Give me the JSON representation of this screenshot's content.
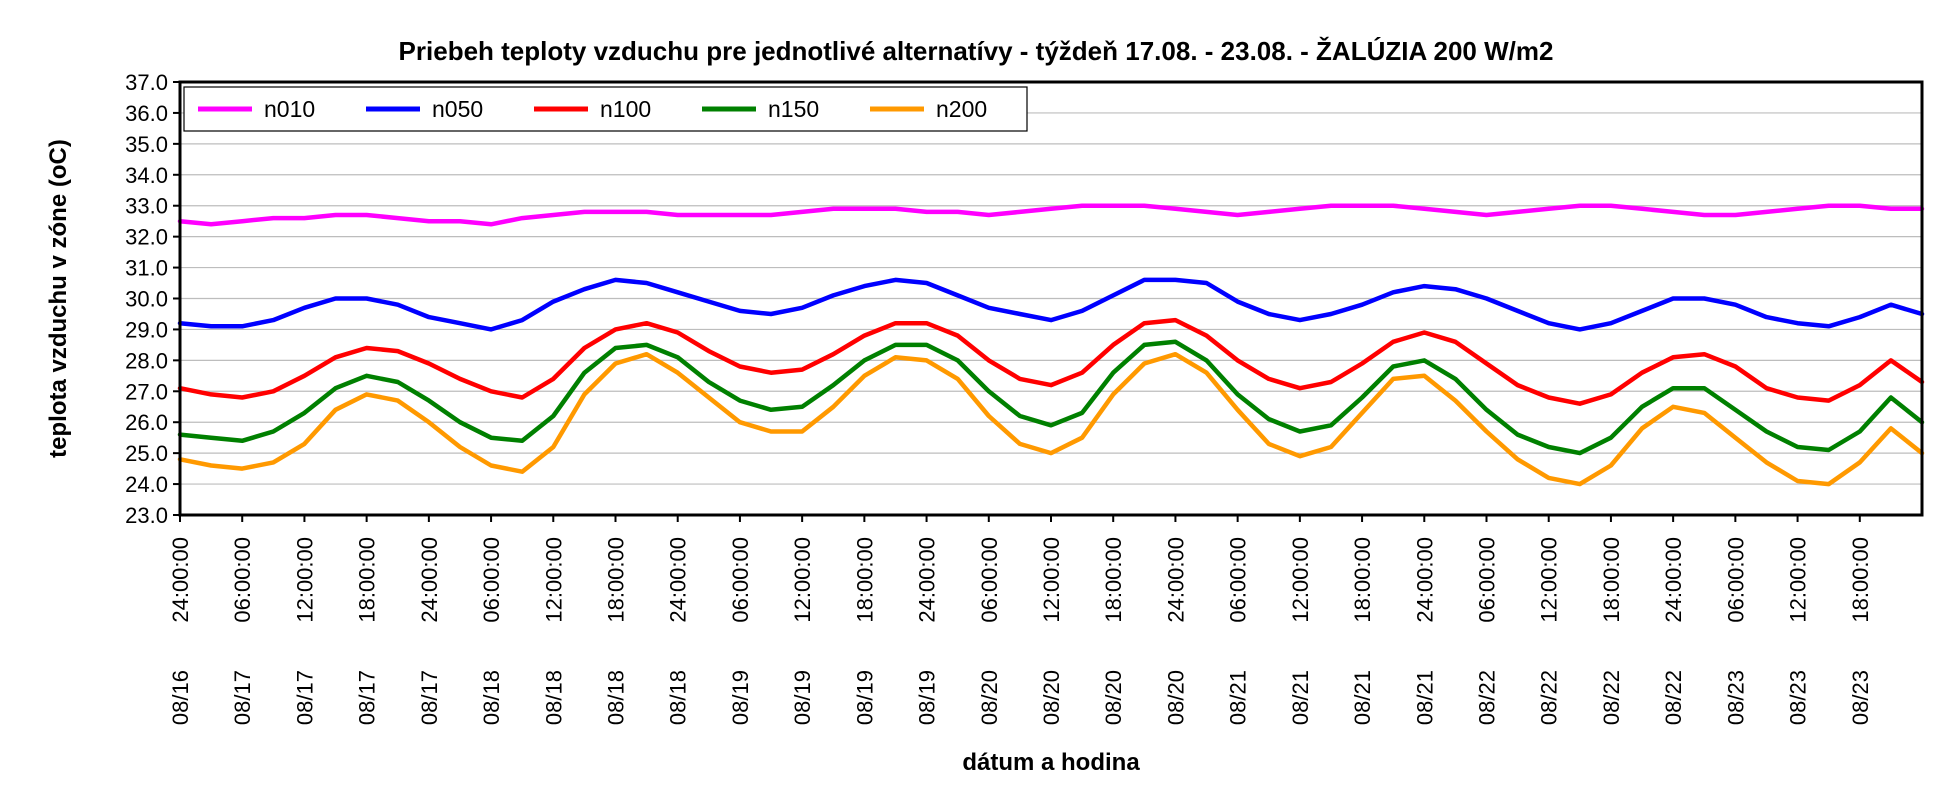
{
  "chart_data": {
    "type": "line",
    "title": "Priebeh teploty vzduchu pre jednotlivé alternatívy - týždeň 17.08. - 23.08. - ŽALÚZIA 200 W/m2",
    "xlabel": "dátum a hodina",
    "ylabel": "teplota vzduchu v zóne (oC)",
    "ylim": [
      23.0,
      37.0
    ],
    "y_ticks": [
      "23.0",
      "24.0",
      "25.0",
      "26.0",
      "27.0",
      "28.0",
      "29.0",
      "30.0",
      "31.0",
      "32.0",
      "33.0",
      "34.0",
      "35.0",
      "36.0",
      "37.0"
    ],
    "x_ticks": [
      {
        "date": "08/16",
        "time": "24:00:00"
      },
      {
        "date": "08/17",
        "time": "06:00:00"
      },
      {
        "date": "08/17",
        "time": "12:00:00"
      },
      {
        "date": "08/17",
        "time": "18:00:00"
      },
      {
        "date": "08/17",
        "time": "24:00:00"
      },
      {
        "date": "08/18",
        "time": "06:00:00"
      },
      {
        "date": "08/18",
        "time": "12:00:00"
      },
      {
        "date": "08/18",
        "time": "18:00:00"
      },
      {
        "date": "08/18",
        "time": "24:00:00"
      },
      {
        "date": "08/19",
        "time": "06:00:00"
      },
      {
        "date": "08/19",
        "time": "12:00:00"
      },
      {
        "date": "08/19",
        "time": "18:00:00"
      },
      {
        "date": "08/19",
        "time": "24:00:00"
      },
      {
        "date": "08/20",
        "time": "06:00:00"
      },
      {
        "date": "08/20",
        "time": "12:00:00"
      },
      {
        "date": "08/20",
        "time": "18:00:00"
      },
      {
        "date": "08/20",
        "time": "24:00:00"
      },
      {
        "date": "08/21",
        "time": "06:00:00"
      },
      {
        "date": "08/21",
        "time": "12:00:00"
      },
      {
        "date": "08/21",
        "time": "18:00:00"
      },
      {
        "date": "08/21",
        "time": "24:00:00"
      },
      {
        "date": "08/22",
        "time": "06:00:00"
      },
      {
        "date": "08/22",
        "time": "12:00:00"
      },
      {
        "date": "08/22",
        "time": "18:00:00"
      },
      {
        "date": "08/22",
        "time": "24:00:00"
      },
      {
        "date": "08/23",
        "time": "06:00:00"
      },
      {
        "date": "08/23",
        "time": "12:00:00"
      },
      {
        "date": "08/23",
        "time": "18:00:00"
      }
    ],
    "x_range_hours": [
      0,
      168
    ],
    "grid": "horizontal",
    "legend_position": "top-left",
    "series": [
      {
        "name": "n010",
        "color": "#ff00ff",
        "points": [
          [
            0,
            32.5
          ],
          [
            3,
            32.4
          ],
          [
            6,
            32.5
          ],
          [
            9,
            32.6
          ],
          [
            12,
            32.6
          ],
          [
            15,
            32.7
          ],
          [
            18,
            32.7
          ],
          [
            21,
            32.6
          ],
          [
            24,
            32.5
          ],
          [
            27,
            32.5
          ],
          [
            30,
            32.4
          ],
          [
            33,
            32.6
          ],
          [
            36,
            32.7
          ],
          [
            39,
            32.8
          ],
          [
            42,
            32.8
          ],
          [
            45,
            32.8
          ],
          [
            48,
            32.7
          ],
          [
            51,
            32.7
          ],
          [
            54,
            32.7
          ],
          [
            57,
            32.7
          ],
          [
            60,
            32.8
          ],
          [
            63,
            32.9
          ],
          [
            66,
            32.9
          ],
          [
            69,
            32.9
          ],
          [
            72,
            32.8
          ],
          [
            75,
            32.8
          ],
          [
            78,
            32.7
          ],
          [
            81,
            32.8
          ],
          [
            84,
            32.9
          ],
          [
            87,
            33.0
          ],
          [
            90,
            33.0
          ],
          [
            93,
            33.0
          ],
          [
            96,
            32.9
          ],
          [
            99,
            32.8
          ],
          [
            102,
            32.7
          ],
          [
            105,
            32.8
          ],
          [
            108,
            32.9
          ],
          [
            111,
            33.0
          ],
          [
            114,
            33.0
          ],
          [
            117,
            33.0
          ],
          [
            120,
            32.9
          ],
          [
            123,
            32.8
          ],
          [
            126,
            32.7
          ],
          [
            129,
            32.8
          ],
          [
            132,
            32.9
          ],
          [
            135,
            33.0
          ],
          [
            138,
            33.0
          ],
          [
            141,
            32.9
          ],
          [
            144,
            32.8
          ],
          [
            147,
            32.7
          ],
          [
            150,
            32.7
          ],
          [
            153,
            32.8
          ],
          [
            156,
            32.9
          ],
          [
            159,
            33.0
          ],
          [
            162,
            33.0
          ],
          [
            165,
            32.9
          ],
          [
            168,
            32.9
          ]
        ]
      },
      {
        "name": "n050",
        "color": "#0000ff",
        "points": [
          [
            0,
            29.2
          ],
          [
            3,
            29.1
          ],
          [
            6,
            29.1
          ],
          [
            9,
            29.3
          ],
          [
            12,
            29.7
          ],
          [
            15,
            30.0
          ],
          [
            18,
            30.0
          ],
          [
            21,
            29.8
          ],
          [
            24,
            29.4
          ],
          [
            27,
            29.2
          ],
          [
            30,
            29.0
          ],
          [
            33,
            29.3
          ],
          [
            36,
            29.9
          ],
          [
            39,
            30.3
          ],
          [
            42,
            30.6
          ],
          [
            45,
            30.5
          ],
          [
            48,
            30.2
          ],
          [
            51,
            29.9
          ],
          [
            54,
            29.6
          ],
          [
            57,
            29.5
          ],
          [
            60,
            29.7
          ],
          [
            63,
            30.1
          ],
          [
            66,
            30.4
          ],
          [
            69,
            30.6
          ],
          [
            72,
            30.5
          ],
          [
            75,
            30.1
          ],
          [
            78,
            29.7
          ],
          [
            81,
            29.5
          ],
          [
            84,
            29.3
          ],
          [
            87,
            29.6
          ],
          [
            90,
            30.1
          ],
          [
            93,
            30.6
          ],
          [
            96,
            30.6
          ],
          [
            99,
            30.5
          ],
          [
            102,
            29.9
          ],
          [
            105,
            29.5
          ],
          [
            108,
            29.3
          ],
          [
            111,
            29.5
          ],
          [
            114,
            29.8
          ],
          [
            117,
            30.2
          ],
          [
            120,
            30.4
          ],
          [
            123,
            30.3
          ],
          [
            126,
            30.0
          ],
          [
            129,
            29.6
          ],
          [
            132,
            29.2
          ],
          [
            135,
            29.0
          ],
          [
            138,
            29.2
          ],
          [
            141,
            29.6
          ],
          [
            144,
            30.0
          ],
          [
            147,
            30.0
          ],
          [
            150,
            29.8
          ],
          [
            153,
            29.4
          ],
          [
            156,
            29.2
          ],
          [
            159,
            29.1
          ],
          [
            162,
            29.4
          ],
          [
            165,
            29.8
          ],
          [
            168,
            29.5
          ]
        ]
      },
      {
        "name": "n100",
        "color": "#ff0000",
        "points": [
          [
            0,
            27.1
          ],
          [
            3,
            26.9
          ],
          [
            6,
            26.8
          ],
          [
            9,
            27.0
          ],
          [
            12,
            27.5
          ],
          [
            15,
            28.1
          ],
          [
            18,
            28.4
          ],
          [
            21,
            28.3
          ],
          [
            24,
            27.9
          ],
          [
            27,
            27.4
          ],
          [
            30,
            27.0
          ],
          [
            33,
            26.8
          ],
          [
            36,
            27.4
          ],
          [
            39,
            28.4
          ],
          [
            42,
            29.0
          ],
          [
            45,
            29.2
          ],
          [
            48,
            28.9
          ],
          [
            51,
            28.3
          ],
          [
            54,
            27.8
          ],
          [
            57,
            27.6
          ],
          [
            60,
            27.7
          ],
          [
            63,
            28.2
          ],
          [
            66,
            28.8
          ],
          [
            69,
            29.2
          ],
          [
            72,
            29.2
          ],
          [
            75,
            28.8
          ],
          [
            78,
            28.0
          ],
          [
            81,
            27.4
          ],
          [
            84,
            27.2
          ],
          [
            87,
            27.6
          ],
          [
            90,
            28.5
          ],
          [
            93,
            29.2
          ],
          [
            96,
            29.3
          ],
          [
            99,
            28.8
          ],
          [
            102,
            28.0
          ],
          [
            105,
            27.4
          ],
          [
            108,
            27.1
          ],
          [
            111,
            27.3
          ],
          [
            114,
            27.9
          ],
          [
            117,
            28.6
          ],
          [
            120,
            28.9
          ],
          [
            123,
            28.6
          ],
          [
            126,
            27.9
          ],
          [
            129,
            27.2
          ],
          [
            132,
            26.8
          ],
          [
            135,
            26.6
          ],
          [
            138,
            26.9
          ],
          [
            141,
            27.6
          ],
          [
            144,
            28.1
          ],
          [
            147,
            28.2
          ],
          [
            150,
            27.8
          ],
          [
            153,
            27.1
          ],
          [
            156,
            26.8
          ],
          [
            159,
            26.7
          ],
          [
            162,
            27.2
          ],
          [
            165,
            28.0
          ],
          [
            168,
            27.3
          ]
        ]
      },
      {
        "name": "n150",
        "color": "#008000",
        "points": [
          [
            0,
            25.6
          ],
          [
            3,
            25.5
          ],
          [
            6,
            25.4
          ],
          [
            9,
            25.7
          ],
          [
            12,
            26.3
          ],
          [
            15,
            27.1
          ],
          [
            18,
            27.5
          ],
          [
            21,
            27.3
          ],
          [
            24,
            26.7
          ],
          [
            27,
            26.0
          ],
          [
            30,
            25.5
          ],
          [
            33,
            25.4
          ],
          [
            36,
            26.2
          ],
          [
            39,
            27.6
          ],
          [
            42,
            28.4
          ],
          [
            45,
            28.5
          ],
          [
            48,
            28.1
          ],
          [
            51,
            27.3
          ],
          [
            54,
            26.7
          ],
          [
            57,
            26.4
          ],
          [
            60,
            26.5
          ],
          [
            63,
            27.2
          ],
          [
            66,
            28.0
          ],
          [
            69,
            28.5
          ],
          [
            72,
            28.5
          ],
          [
            75,
            28.0
          ],
          [
            78,
            27.0
          ],
          [
            81,
            26.2
          ],
          [
            84,
            25.9
          ],
          [
            87,
            26.3
          ],
          [
            90,
            27.6
          ],
          [
            93,
            28.5
          ],
          [
            96,
            28.6
          ],
          [
            99,
            28.0
          ],
          [
            102,
            26.9
          ],
          [
            105,
            26.1
          ],
          [
            108,
            25.7
          ],
          [
            111,
            25.9
          ],
          [
            114,
            26.8
          ],
          [
            117,
            27.8
          ],
          [
            120,
            28.0
          ],
          [
            123,
            27.4
          ],
          [
            126,
            26.4
          ],
          [
            129,
            25.6
          ],
          [
            132,
            25.2
          ],
          [
            135,
            25.0
          ],
          [
            138,
            25.5
          ],
          [
            141,
            26.5
          ],
          [
            144,
            27.1
          ],
          [
            147,
            27.1
          ],
          [
            150,
            26.4
          ],
          [
            153,
            25.7
          ],
          [
            156,
            25.2
          ],
          [
            159,
            25.1
          ],
          [
            162,
            25.7
          ],
          [
            165,
            26.8
          ],
          [
            168,
            26.0
          ]
        ]
      },
      {
        "name": "n200",
        "color": "#ff9900",
        "points": [
          [
            0,
            24.8
          ],
          [
            3,
            24.6
          ],
          [
            6,
            24.5
          ],
          [
            9,
            24.7
          ],
          [
            12,
            25.3
          ],
          [
            15,
            26.4
          ],
          [
            18,
            26.9
          ],
          [
            21,
            26.7
          ],
          [
            24,
            26.0
          ],
          [
            27,
            25.2
          ],
          [
            30,
            24.6
          ],
          [
            33,
            24.4
          ],
          [
            36,
            25.2
          ],
          [
            39,
            26.9
          ],
          [
            42,
            27.9
          ],
          [
            45,
            28.2
          ],
          [
            48,
            27.6
          ],
          [
            51,
            26.8
          ],
          [
            54,
            26.0
          ],
          [
            57,
            25.7
          ],
          [
            60,
            25.7
          ],
          [
            63,
            26.5
          ],
          [
            66,
            27.5
          ],
          [
            69,
            28.1
          ],
          [
            72,
            28.0
          ],
          [
            75,
            27.4
          ],
          [
            78,
            26.2
          ],
          [
            81,
            25.3
          ],
          [
            84,
            25.0
          ],
          [
            87,
            25.5
          ],
          [
            90,
            26.9
          ],
          [
            93,
            27.9
          ],
          [
            96,
            28.2
          ],
          [
            99,
            27.6
          ],
          [
            102,
            26.4
          ],
          [
            105,
            25.3
          ],
          [
            108,
            24.9
          ],
          [
            111,
            25.2
          ],
          [
            114,
            26.3
          ],
          [
            117,
            27.4
          ],
          [
            120,
            27.5
          ],
          [
            123,
            26.7
          ],
          [
            126,
            25.7
          ],
          [
            129,
            24.8
          ],
          [
            132,
            24.2
          ],
          [
            135,
            24.0
          ],
          [
            138,
            24.6
          ],
          [
            141,
            25.8
          ],
          [
            144,
            26.5
          ],
          [
            147,
            26.3
          ],
          [
            150,
            25.5
          ],
          [
            153,
            24.7
          ],
          [
            156,
            24.1
          ],
          [
            159,
            24.0
          ],
          [
            162,
            24.7
          ],
          [
            165,
            25.8
          ],
          [
            168,
            25.0
          ]
        ]
      }
    ]
  }
}
